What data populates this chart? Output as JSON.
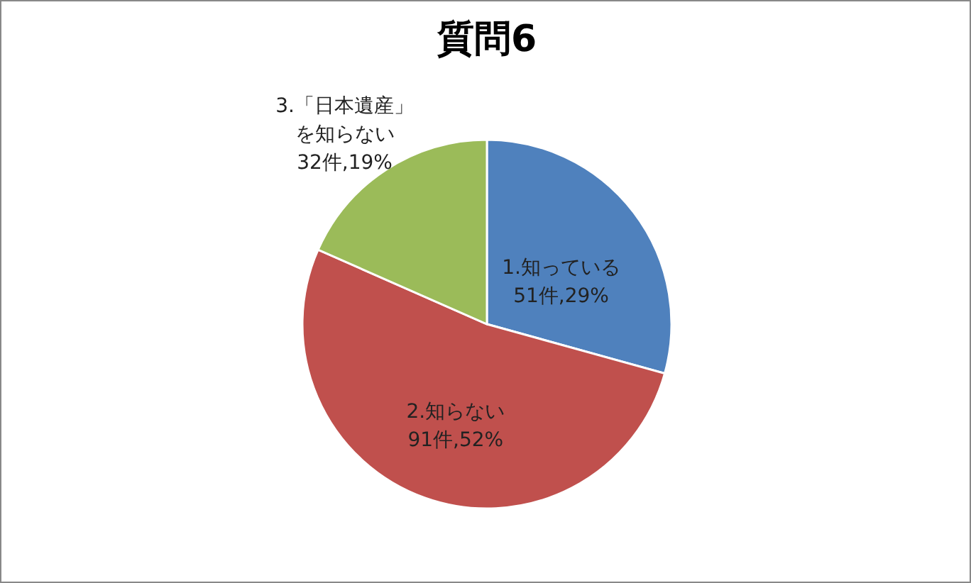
{
  "chart_data": {
    "type": "pie",
    "title": "質問6",
    "categories": [
      "1.知っている",
      "2.知らない",
      "3.「日本遺産」を知らない"
    ],
    "values": [
      51,
      91,
      32
    ],
    "value_labels": [
      "51件,29%",
      "91件,52%",
      "32件,19%"
    ],
    "colors": [
      "#4f81bd",
      "#c0504d",
      "#9bbb59"
    ],
    "legend": false
  }
}
